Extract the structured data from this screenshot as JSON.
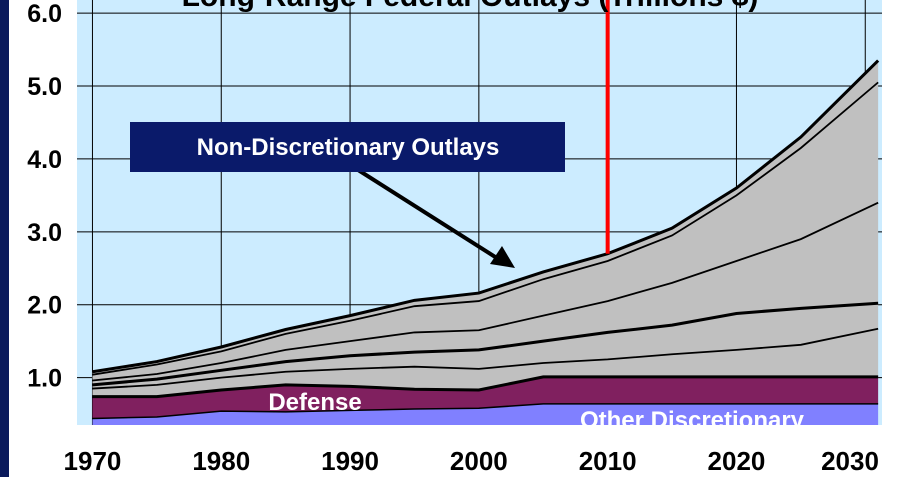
{
  "chart_data": {
    "type": "stacked_area",
    "title": "Long-Range Federal Outlays (Trillions $)",
    "x": [
      1970,
      1975,
      1980,
      1985,
      1990,
      1995,
      2000,
      2005,
      2010,
      2015,
      2020,
      2025,
      2031
    ],
    "series": [
      {
        "name": "Other Discretionary",
        "color": "#8080ff",
        "values": [
          0.44,
          0.46,
          0.54,
          0.53,
          0.55,
          0.57,
          0.58,
          0.64,
          0.64,
          0.64,
          0.64,
          0.64,
          0.64
        ]
      },
      {
        "name": "Defense",
        "color": "#80205f",
        "values": [
          0.3,
          0.28,
          0.29,
          0.37,
          0.33,
          0.27,
          0.25,
          0.37,
          0.37,
          0.37,
          0.37,
          0.37,
          0.37
        ]
      },
      {
        "color": "#c0c0c0",
        "values": [
          0.11,
          0.16,
          0.17,
          0.18,
          0.24,
          0.31,
          0.29,
          0.19,
          0.24,
          0.31,
          0.37,
          0.44,
          0.66
        ]
      },
      {
        "color": "#c0c0c0",
        "values": [
          0.05,
          0.08,
          0.1,
          0.14,
          0.18,
          0.2,
          0.26,
          0.3,
          0.37,
          0.4,
          0.5,
          0.5,
          0.35
        ]
      },
      {
        "color": "#c0c0c0",
        "values": [
          0.06,
          0.07,
          0.1,
          0.16,
          0.2,
          0.27,
          0.27,
          0.35,
          0.43,
          0.58,
          0.72,
          0.95,
          1.38
        ]
      },
      {
        "color": "#c0c0c0",
        "values": [
          0.08,
          0.13,
          0.16,
          0.22,
          0.28,
          0.36,
          0.4,
          0.5,
          0.55,
          0.65,
          0.9,
          1.25,
          1.65
        ]
      },
      {
        "color": "#c0c0c0",
        "values": [
          0.04,
          0.04,
          0.06,
          0.06,
          0.07,
          0.08,
          0.11,
          0.1,
          0.1,
          0.1,
          0.1,
          0.15,
          0.3
        ]
      }
    ],
    "xlim": [
      1968.8,
      2031.3
    ],
    "xticks": [
      1970,
      1980,
      1990,
      2000,
      2010,
      2020,
      2030
    ],
    "ylim": [
      0.35,
      6.18
    ],
    "yticks": [
      {
        "value": 1,
        "label": "1.0"
      },
      {
        "value": 2,
        "label": "2.0"
      },
      {
        "value": 3,
        "label": "3.0"
      },
      {
        "value": 4,
        "label": "4.0"
      },
      {
        "value": 5,
        "label": "5.0"
      },
      {
        "value": 6,
        "label": "6.0"
      }
    ],
    "grid": true,
    "vline": {
      "x": 2010,
      "color": "#ff0000"
    },
    "annotation": "Non-Discretionary Outlays"
  }
}
